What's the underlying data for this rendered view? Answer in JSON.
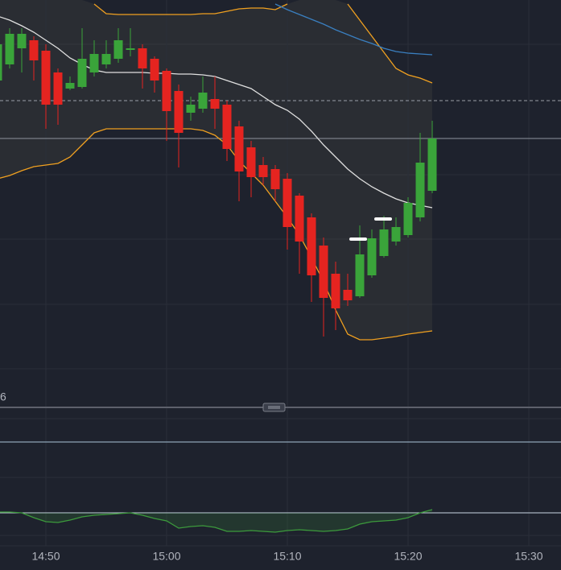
{
  "chart_data": {
    "type": "candlestick",
    "x": [
      "14:46",
      "14:47",
      "14:48",
      "14:49",
      "14:50",
      "14:51",
      "14:52",
      "14:53",
      "14:54",
      "14:55",
      "14:56",
      "14:57",
      "14:58",
      "14:59",
      "15:00",
      "15:01",
      "15:02",
      "15:03",
      "15:04",
      "15:05",
      "15:06",
      "15:07",
      "15:08",
      "15:09",
      "15:10",
      "15:11",
      "15:12",
      "15:13",
      "15:14",
      "15:15",
      "15:16",
      "15:17",
      "15:18",
      "15:19",
      "15:20",
      "15:21",
      "15:22"
    ],
    "open": [
      360,
      380,
      400,
      410,
      397,
      370,
      350,
      352,
      370,
      380,
      387,
      398,
      400,
      387,
      372,
      347,
      320,
      325,
      337,
      330,
      303,
      277,
      255,
      250,
      238,
      217,
      190,
      155,
      120,
      100,
      92,
      118,
      142,
      160,
      168,
      190,
      223
    ],
    "high": [
      410,
      425,
      425,
      415,
      405,
      375,
      365,
      425,
      410,
      410,
      425,
      425,
      405,
      390,
      375,
      355,
      340,
      365,
      365,
      335,
      310,
      285,
      265,
      255,
      245,
      220,
      195,
      165,
      135,
      120,
      180,
      175,
      192,
      190,
      215,
      295,
      310
    ],
    "low": [
      355,
      375,
      370,
      360,
      300,
      305,
      348,
      350,
      365,
      375,
      382,
      390,
      350,
      345,
      285,
      252,
      310,
      320,
      300,
      260,
      210,
      215,
      230,
      210,
      150,
      120,
      85,
      42,
      50,
      80,
      90,
      115,
      140,
      155,
      165,
      185,
      220
    ],
    "close": [
      405,
      418,
      418,
      385,
      330,
      330,
      357,
      387,
      393,
      393,
      410,
      400,
      375,
      360,
      322,
      295,
      330,
      345,
      325,
      275,
      247,
      240,
      240,
      225,
      178,
      160,
      118,
      90,
      77,
      87,
      144,
      164,
      175,
      178,
      208,
      258,
      288
    ],
    "up_color": "#3aa43a",
    "down_color": "#e52420",
    "ylim": [
      0,
      460
    ],
    "xticks": [
      "14:50",
      "15:00",
      "15:10",
      "15:20",
      "15:30"
    ],
    "overlays": [
      {
        "color": "#e0e0e0",
        "values": [
          440,
          435,
          428,
          420,
          410,
          400,
          388,
          380,
          373,
          370,
          370,
          370,
          370,
          369,
          369,
          368,
          368,
          367,
          365,
          360,
          355,
          350,
          340,
          330,
          323,
          312,
          297,
          280,
          265,
          250,
          238,
          228,
          220,
          213,
          208,
          205,
          202
        ]
      },
      {
        "color": "#f0a020",
        "values": [
          null,
          null,
          null,
          null,
          null,
          null,
          null,
          null,
          455,
          443,
          442,
          442,
          442,
          442,
          442,
          442,
          442,
          443,
          443,
          446,
          449,
          450,
          450,
          448,
          455,
          null,
          null,
          null,
          null,
          455,
          435,
          415,
          395,
          375,
          367,
          363,
          357
        ]
      },
      {
        "color": "#f0a020",
        "values": [
          238,
          242,
          248,
          253,
          255,
          257,
          265,
          280,
          295,
          300,
          300,
          300,
          300,
          300,
          300,
          300,
          300,
          298,
          292,
          280,
          260,
          245,
          230,
          210,
          190,
          168,
          140,
          110,
          75,
          45,
          38,
          38,
          40,
          42,
          45,
          47,
          49
        ]
      },
      {
        "color": "#3a7fc0",
        "values": [
          null,
          null,
          null,
          null,
          null,
          null,
          null,
          null,
          null,
          null,
          null,
          null,
          null,
          null,
          null,
          null,
          null,
          null,
          null,
          null,
          null,
          null,
          null,
          455,
          448,
          442,
          436,
          430,
          423,
          417,
          411,
          406,
          400,
          396,
          394,
          393,
          392
        ]
      }
    ],
    "oscillator": {
      "color": "#3c9a3c",
      "ylim": [
        -50,
        100
      ],
      "values": [
        1,
        1,
        0,
        -6,
        -11,
        -12,
        -9,
        -5,
        -3,
        -2,
        -1,
        0,
        -3,
        -7,
        -10,
        -19,
        -17,
        -16,
        -18,
        -23,
        -23,
        -22,
        -23,
        -24,
        -22,
        -21,
        -22,
        -23,
        -22,
        -20,
        -14,
        -11,
        -10,
        -9,
        -6,
        0,
        4
      ]
    },
    "pane_label": "6"
  }
}
